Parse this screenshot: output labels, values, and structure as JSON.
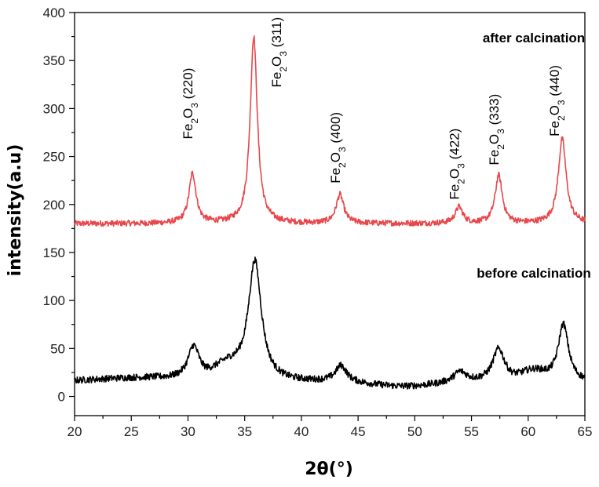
{
  "chart_data": {
    "type": "line",
    "title": "",
    "xlabel": "2θ(°)",
    "ylabel": "intensity(a.u)",
    "xlim": [
      20,
      65
    ],
    "ylim": [
      -20,
      400
    ],
    "x_ticks": [
      20,
      25,
      30,
      35,
      40,
      45,
      50,
      55,
      60,
      65
    ],
    "y_ticks": [
      0,
      50,
      100,
      150,
      200,
      250,
      300,
      350,
      400
    ],
    "grid": false,
    "series": [
      {
        "name": "after calcination",
        "color": "#e8474b",
        "baseline": 180,
        "noise": 3,
        "peaks": [
          {
            "center": 30.4,
            "height": 52,
            "width": 0.38
          },
          {
            "center": 35.8,
            "height": 195,
            "width": 0.38
          },
          {
            "center": 43.4,
            "height": 30,
            "width": 0.4
          },
          {
            "center": 53.9,
            "height": 17,
            "width": 0.4
          },
          {
            "center": 57.4,
            "height": 50,
            "width": 0.38
          },
          {
            "center": 63.0,
            "height": 88,
            "width": 0.42
          }
        ],
        "points": [
          [
            20,
            180
          ],
          [
            29.5,
            181
          ],
          [
            30.4,
            232
          ],
          [
            31.3,
            181
          ],
          [
            34.6,
            183
          ],
          [
            35.8,
            374
          ],
          [
            37,
            186
          ],
          [
            42.5,
            181
          ],
          [
            43.4,
            211
          ],
          [
            44.3,
            181
          ],
          [
            53.2,
            181
          ],
          [
            53.9,
            197
          ],
          [
            54.6,
            181
          ],
          [
            56.6,
            182
          ],
          [
            57.4,
            230
          ],
          [
            58.3,
            182
          ],
          [
            61.9,
            183
          ],
          [
            63.0,
            268
          ],
          [
            64.2,
            186
          ],
          [
            65,
            180
          ]
        ]
      },
      {
        "name": "before calcination",
        "color": "#000000",
        "baseline": 15,
        "noise": 3.5,
        "peaks": [
          {
            "center": 30.5,
            "height": 34,
            "width": 0.6
          },
          {
            "center": 35.9,
            "height": 125,
            "width": 0.7
          },
          {
            "center": 43.5,
            "height": 17,
            "width": 0.6
          },
          {
            "center": 54.0,
            "height": 11,
            "width": 0.7
          },
          {
            "center": 57.4,
            "height": 34,
            "width": 0.65
          },
          {
            "center": 63.1,
            "height": 60,
            "width": 0.55
          }
        ],
        "points": [
          [
            20,
            16
          ],
          [
            29,
            18
          ],
          [
            30.5,
            55
          ],
          [
            32,
            22
          ],
          [
            34.5,
            40
          ],
          [
            35.9,
            153
          ],
          [
            37.5,
            35
          ],
          [
            42.5,
            18
          ],
          [
            43.5,
            36
          ],
          [
            44.5,
            16
          ],
          [
            50,
            12
          ],
          [
            54.0,
            27
          ],
          [
            56.3,
            35
          ],
          [
            57.4,
            53
          ],
          [
            58.5,
            38
          ],
          [
            61.8,
            38
          ],
          [
            63.1,
            86
          ],
          [
            64.2,
            35
          ],
          [
            65,
            20
          ]
        ]
      }
    ],
    "annotations": [
      {
        "text": "Fe2O3 (220)",
        "x": 30.4,
        "y": 268
      },
      {
        "text": "Fe2O3 (311)",
        "x": 38.2,
        "y": 322
      },
      {
        "text": "Fe2O3 (400)",
        "x": 43.4,
        "y": 222
      },
      {
        "text": "Fe2O3 (422)",
        "x": 53.9,
        "y": 205
      },
      {
        "text": "Fe2O3 (333)",
        "x": 57.4,
        "y": 241
      },
      {
        "text": "Fe2O3 (440)",
        "x": 62.7,
        "y": 271
      }
    ],
    "series_labels": [
      {
        "text": "after calcination",
        "x": 60.5,
        "y": 369
      },
      {
        "text": "before calcination",
        "x": 60.5,
        "y": 124
      }
    ]
  }
}
